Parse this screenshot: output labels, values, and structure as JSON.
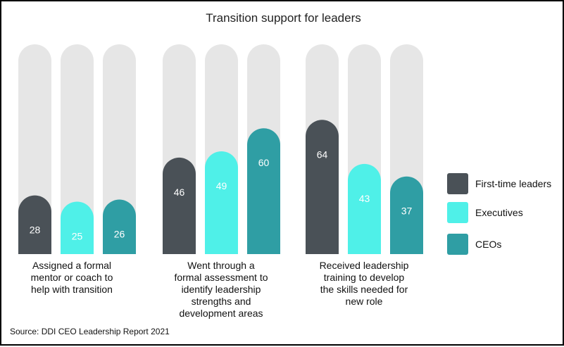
{
  "chart_data": {
    "type": "bar",
    "title": "Transition support for leaders",
    "categories": [
      "Assigned a formal mentor or coach to help with transition",
      "Went through a formal assessment to identify leadership strengths and development areas",
      "Received leadership training to develop the skills needed for new role"
    ],
    "category_lines": [
      [
        "Assigned a formal",
        "mentor or coach to",
        "help with transition"
      ],
      [
        "Went through a",
        "formal assessment to",
        "identify leadership",
        "strengths and",
        "development areas"
      ],
      [
        "Received leadership",
        "training to develop",
        "the skills needed for",
        "new role"
      ]
    ],
    "series": [
      {
        "name": "First-time leaders",
        "color": "#4a5157",
        "values": [
          28,
          46,
          64
        ]
      },
      {
        "name": "Executives",
        "color": "#4ff0e8",
        "values": [
          25,
          49,
          43
        ]
      },
      {
        "name": "CEOs",
        "color": "#2f9ea4",
        "values": [
          26,
          60,
          37
        ]
      }
    ],
    "ylim": [
      0,
      100
    ],
    "background_bar_color": "#e6e6e6",
    "label_colors": {
      "on_dark": "#ffffff",
      "on_light": "#ffffff"
    },
    "legend_position": "right",
    "source": "Source: DDI CEO Leadership Report 2021"
  }
}
